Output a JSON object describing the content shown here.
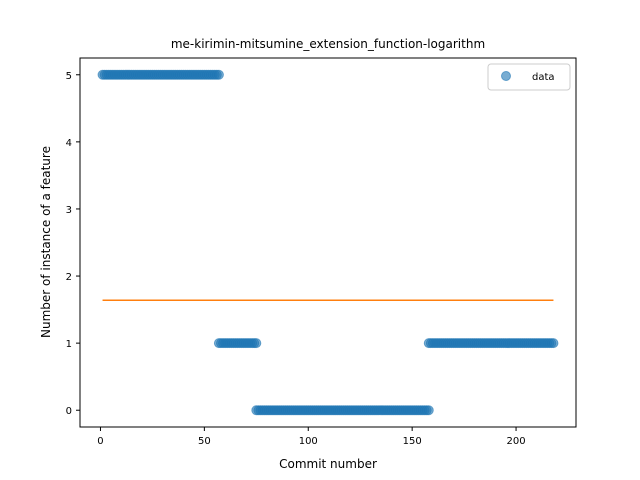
{
  "chart_data": {
    "type": "scatter",
    "title": "me-kirimin-mitsumine_extension_function-logarithm",
    "xlabel": "Commit number",
    "ylabel": "Number of instance of a feature",
    "xlim": [
      -9.85,
      228.85
    ],
    "ylim": [
      -0.25,
      5.25
    ],
    "xticks": [
      0,
      50,
      100,
      150,
      200
    ],
    "yticks": [
      0,
      1,
      2,
      3,
      4,
      5
    ],
    "grid": false,
    "legend": {
      "position": "top-right",
      "entries": [
        "data"
      ]
    },
    "series": [
      {
        "name": "data",
        "kind": "scatter",
        "color": "#1f77b4",
        "segments": [
          {
            "x_start": 1,
            "x_end": 57,
            "y": 5
          },
          {
            "x_start": 57,
            "x_end": 75,
            "y": 1
          },
          {
            "x_start": 75,
            "x_end": 158,
            "y": 0
          },
          {
            "x_start": 158,
            "x_end": 218,
            "y": 1
          }
        ]
      },
      {
        "kind": "line",
        "color": "#ff7f0e",
        "x": [
          1,
          218
        ],
        "y": [
          1.64,
          1.64
        ]
      }
    ]
  }
}
